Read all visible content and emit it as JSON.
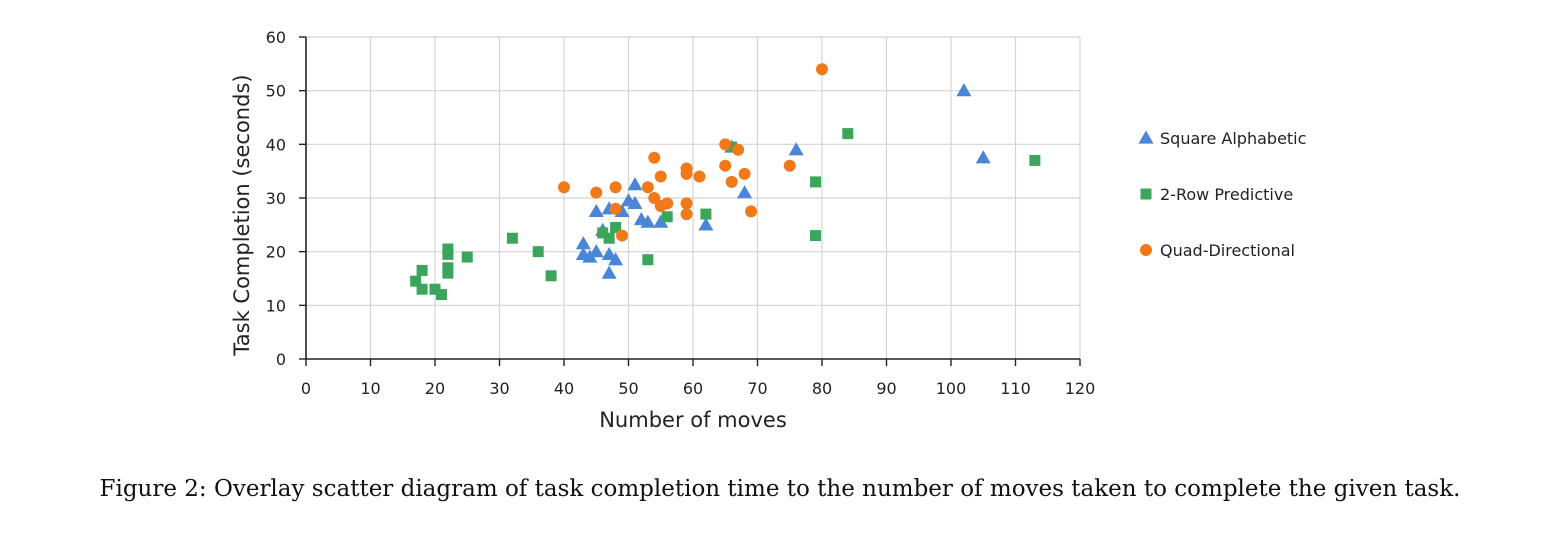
{
  "caption": "Figure 2: Overlay scatter diagram of task completion time to the number of moves taken to complete the given task.",
  "chart_data": {
    "type": "scatter",
    "xlabel": "Number of moves",
    "ylabel": "Task Completion (seconds)",
    "xlim": [
      0,
      120
    ],
    "ylim": [
      0,
      60
    ],
    "xticks": [
      0,
      10,
      20,
      30,
      40,
      50,
      60,
      70,
      80,
      90,
      100,
      110,
      120
    ],
    "yticks": [
      0,
      10,
      20,
      30,
      40,
      50,
      60
    ],
    "grid": true,
    "legend_position": "right",
    "series": [
      {
        "name": "Square Alphabetic",
        "marker": "triangle",
        "color": "#4A86D8",
        "points": [
          [
            43,
            21.5
          ],
          [
            43,
            19.5
          ],
          [
            44,
            19
          ],
          [
            45,
            20
          ],
          [
            45,
            27.5
          ],
          [
            46,
            24
          ],
          [
            47,
            28
          ],
          [
            47,
            19.5
          ],
          [
            47,
            16
          ],
          [
            48,
            18.5
          ],
          [
            49,
            27.5
          ],
          [
            50,
            29.5
          ],
          [
            51,
            32.5
          ],
          [
            51,
            29
          ],
          [
            52,
            26
          ],
          [
            53,
            25.5
          ],
          [
            55,
            25.5
          ],
          [
            62,
            25
          ],
          [
            66,
            39.5
          ],
          [
            68,
            31
          ],
          [
            76,
            39
          ],
          [
            102,
            50
          ],
          [
            105,
            37.5
          ]
        ]
      },
      {
        "name": "2-Row Predictive",
        "marker": "square",
        "color": "#3BA55C",
        "points": [
          [
            17,
            14.5
          ],
          [
            18,
            16.5
          ],
          [
            18,
            13
          ],
          [
            20,
            13
          ],
          [
            21,
            12
          ],
          [
            22,
            20.5
          ],
          [
            22,
            19.5
          ],
          [
            22,
            17
          ],
          [
            22,
            16
          ],
          [
            25,
            19
          ],
          [
            32,
            22.5
          ],
          [
            36,
            20
          ],
          [
            38,
            15.5
          ],
          [
            46,
            23.5
          ],
          [
            47,
            22.5
          ],
          [
            48,
            24.5
          ],
          [
            53,
            18.5
          ],
          [
            56,
            26.5
          ],
          [
            62,
            27
          ],
          [
            66,
            39.5
          ],
          [
            79,
            33
          ],
          [
            79,
            23
          ],
          [
            84,
            42
          ],
          [
            113,
            37
          ]
        ]
      },
      {
        "name": "Quad-Directional",
        "marker": "circle",
        "color": "#F07A1A",
        "points": [
          [
            40,
            32
          ],
          [
            45,
            31
          ],
          [
            48,
            32
          ],
          [
            48,
            28
          ],
          [
            49,
            23
          ],
          [
            53,
            32
          ],
          [
            54,
            37.5
          ],
          [
            54,
            30
          ],
          [
            55,
            34
          ],
          [
            55,
            28.5
          ],
          [
            56,
            29
          ],
          [
            59,
            35.5
          ],
          [
            59,
            34.5
          ],
          [
            59,
            29
          ],
          [
            59,
            27
          ],
          [
            61,
            34
          ],
          [
            65,
            40
          ],
          [
            65,
            36
          ],
          [
            66,
            33
          ],
          [
            67,
            39
          ],
          [
            68,
            34.5
          ],
          [
            69,
            27.5
          ],
          [
            75,
            36
          ],
          [
            80,
            54
          ]
        ]
      }
    ]
  }
}
